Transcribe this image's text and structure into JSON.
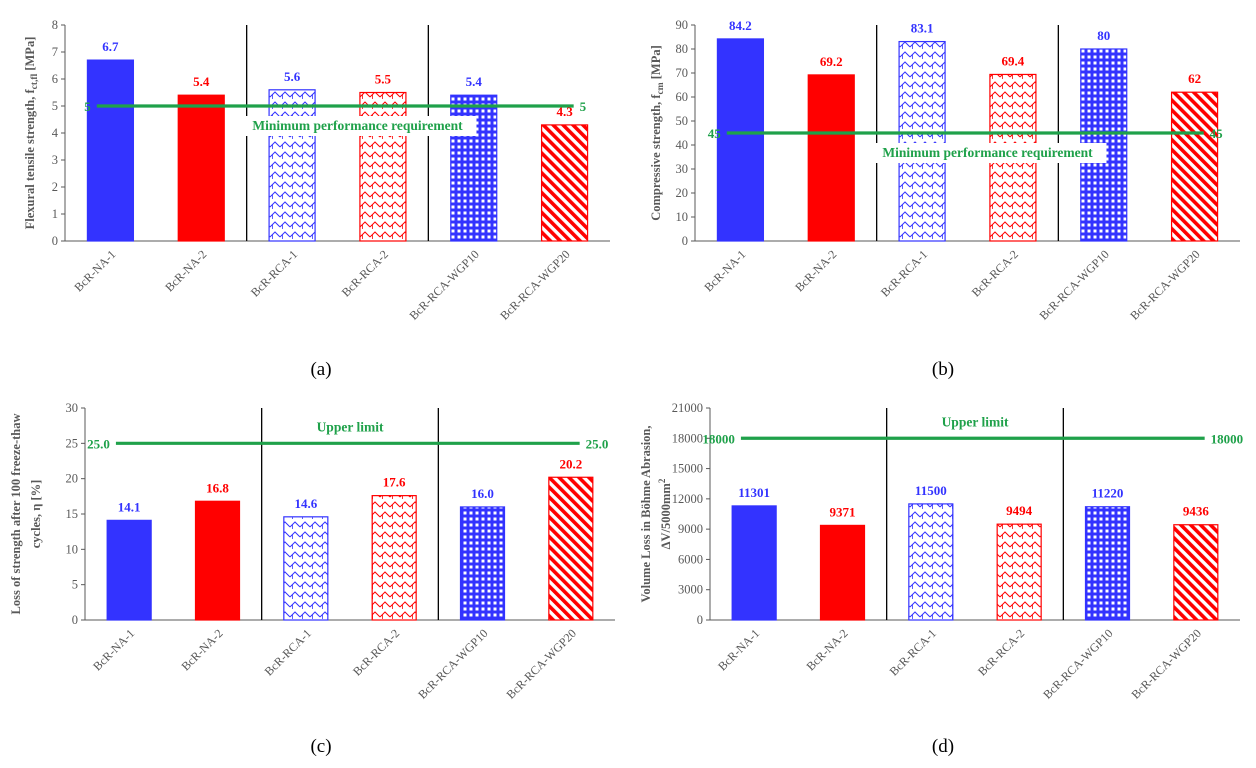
{
  "colors": {
    "blue": "#3333ff",
    "red": "#ff0000",
    "green": "#1fa14a",
    "axis": "#595959"
  },
  "chart_data": [
    {
      "type": "bar",
      "panel": "a",
      "caption": "(a)",
      "ylabel": "Flexural tensile strength, f",
      "ylabel_sub": "ct,fl",
      "ylabel_unit": " [MPa]",
      "categories": [
        "BcR-NA-1",
        "BcR-NA-2",
        "BcR-RCA-1",
        "BcR-RCA-2",
        "BcR-RCA-WGP10",
        "BcR-RCA-WGP20"
      ],
      "values": [
        6.7,
        5.4,
        5.6,
        5.5,
        5.4,
        4.3
      ],
      "value_labels": [
        "6.7",
        "5.4",
        "5.6",
        "5.5",
        "5.4",
        "4.3"
      ],
      "patterns": [
        "blue-solid",
        "red-solid",
        "blue-wave",
        "red-wave",
        "blue-grid",
        "red-diag"
      ],
      "ylim": [
        0,
        8
      ],
      "yticks": [
        0,
        1,
        2,
        3,
        4,
        5,
        6,
        7,
        8
      ],
      "reference": {
        "value": 5,
        "left_label": "5",
        "right_label": "5",
        "text": "Minimum performance requirement",
        "text_position": "below"
      }
    },
    {
      "type": "bar",
      "panel": "b",
      "caption": "(b)",
      "ylabel": "Compressive strength, f",
      "ylabel_sub": "cm",
      "ylabel_unit": " [MPa]",
      "categories": [
        "BcR-NA-1",
        "BcR-NA-2",
        "BcR-RCA-1",
        "BcR-RCA-2",
        "BcR-RCA-WGP10",
        "BcR-RCA-WGP20"
      ],
      "values": [
        84.2,
        69.2,
        83.1,
        69.4,
        80,
        62
      ],
      "value_labels": [
        "84.2",
        "69.2",
        "83.1",
        "69.4",
        "80",
        "62"
      ],
      "patterns": [
        "blue-solid",
        "red-solid",
        "blue-wave",
        "red-wave",
        "blue-grid",
        "red-diag"
      ],
      "ylim": [
        0,
        90
      ],
      "yticks": [
        0,
        10,
        20,
        30,
        40,
        50,
        60,
        70,
        80,
        90
      ],
      "reference": {
        "value": 45,
        "left_label": "45",
        "right_label": "45",
        "text": "Minimum performance requirement",
        "text_position": "below"
      }
    },
    {
      "type": "bar",
      "panel": "c",
      "caption": "(c)",
      "ylabel": "Loss of strength after 100 freeze-thaw",
      "ylabel2": "cycles, η [%]",
      "categories": [
        "BcR-NA-1",
        "BcR-NA-2",
        "BcR-RCA-1",
        "BcR-RCA-2",
        "BcR-RCA-WGP10",
        "BcR-RCA-WGP20"
      ],
      "values": [
        14.1,
        16.8,
        14.6,
        17.6,
        16.0,
        20.2
      ],
      "value_labels": [
        "14.1",
        "16.8",
        "14.6",
        "17.6",
        "16.0",
        "20.2"
      ],
      "patterns": [
        "blue-solid",
        "red-solid",
        "blue-wave",
        "red-wave",
        "blue-grid",
        "red-diag"
      ],
      "ylim": [
        0,
        30
      ],
      "yticks": [
        0,
        5,
        10,
        15,
        20,
        25,
        30
      ],
      "reference": {
        "value": 25,
        "left_label": "25.0",
        "right_label": "25.0",
        "text": "Upper limit",
        "text_position": "above"
      }
    },
    {
      "type": "bar",
      "panel": "d",
      "caption": "(d)",
      "ylabel": "Volume Loss in Böhme Abrasion,",
      "ylabel2": "ΔV/5000mm",
      "ylabel2_sup": "2",
      "categories": [
        "BcR-NA-1",
        "BcR-NA-2",
        "BcR-RCA-1",
        "BcR-RCA-2",
        "BcR-RCA-WGP10",
        "BcR-RCA-WGP20"
      ],
      "values": [
        11301,
        9371,
        11500,
        9494,
        11220,
        9436
      ],
      "value_labels": [
        "11301",
        "9371",
        "11500",
        "9494",
        "11220",
        "9436"
      ],
      "patterns": [
        "blue-solid",
        "red-solid",
        "blue-wave",
        "red-wave",
        "blue-grid",
        "red-diag"
      ],
      "ylim": [
        0,
        21000
      ],
      "yticks": [
        0,
        3000,
        6000,
        9000,
        12000,
        15000,
        18000,
        21000
      ],
      "reference": {
        "value": 18000,
        "left_label": "18000",
        "right_label": "18000",
        "text": "Upper limit",
        "text_position": "above"
      }
    }
  ]
}
